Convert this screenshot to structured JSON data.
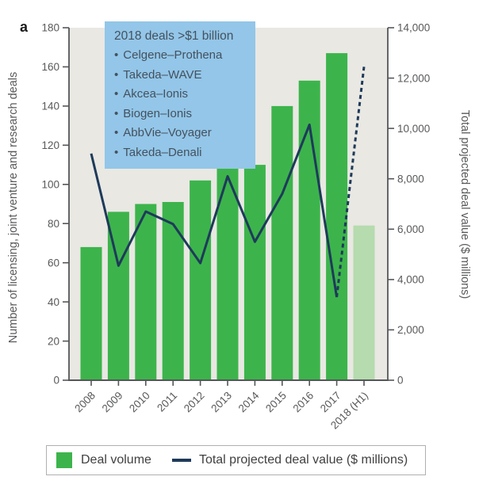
{
  "figure": {
    "panel_label": "a"
  },
  "info_box": {
    "title": "2018 deals >$1 billion",
    "items": [
      "Celgene–Prothena",
      "Takeda–WAVE",
      "Akcea–Ionis",
      "Biogen–Ionis",
      "AbbVie–Voyager",
      "Takeda–Denali"
    ]
  },
  "legend": {
    "items": [
      {
        "label": "Deal volume",
        "swatch": "green-square"
      },
      {
        "label": "Total projected deal value ($ millions)",
        "swatch": "navy-line"
      }
    ]
  },
  "colors": {
    "bar_green": "#3cb44b",
    "bar_light_green": "#b5dbae",
    "line_navy": "#1e3a5a",
    "info_box_bg": "#93c6e8",
    "info_box_text": "#44515f",
    "axis_text": "#58595b",
    "axis_line": "#55565a",
    "plot_bg": "#e9e8e3"
  },
  "chart_data": {
    "type": "bar+line",
    "categories": [
      "2008",
      "2009",
      "2010",
      "2011",
      "2012",
      "2013",
      "2014",
      "2015",
      "2016",
      "2017",
      "2018 (H1)"
    ],
    "series": [
      {
        "name": "Deal volume",
        "type": "bar",
        "axis": "left",
        "values": [
          68,
          86,
          90,
          91,
          102,
          109,
          110,
          140,
          153,
          167,
          79
        ],
        "last_bar_lighter": true
      },
      {
        "name": "Total projected deal value ($ millions)",
        "type": "line",
        "axis": "right",
        "values": [
          9000,
          4550,
          6700,
          6200,
          4650,
          8100,
          5500,
          7400,
          10150,
          3300,
          12450
        ],
        "last_segment_dashed": true
      }
    ],
    "left_axis": {
      "label": "Number of licensing, joint venture and research deals",
      "min": 0,
      "max": 180,
      "tick_step": 20
    },
    "right_axis": {
      "label": "Total projected deal value ($ millions)",
      "min": 0,
      "max": 14000,
      "tick_step": 2000
    },
    "grid": false,
    "legend_position": "bottom"
  }
}
